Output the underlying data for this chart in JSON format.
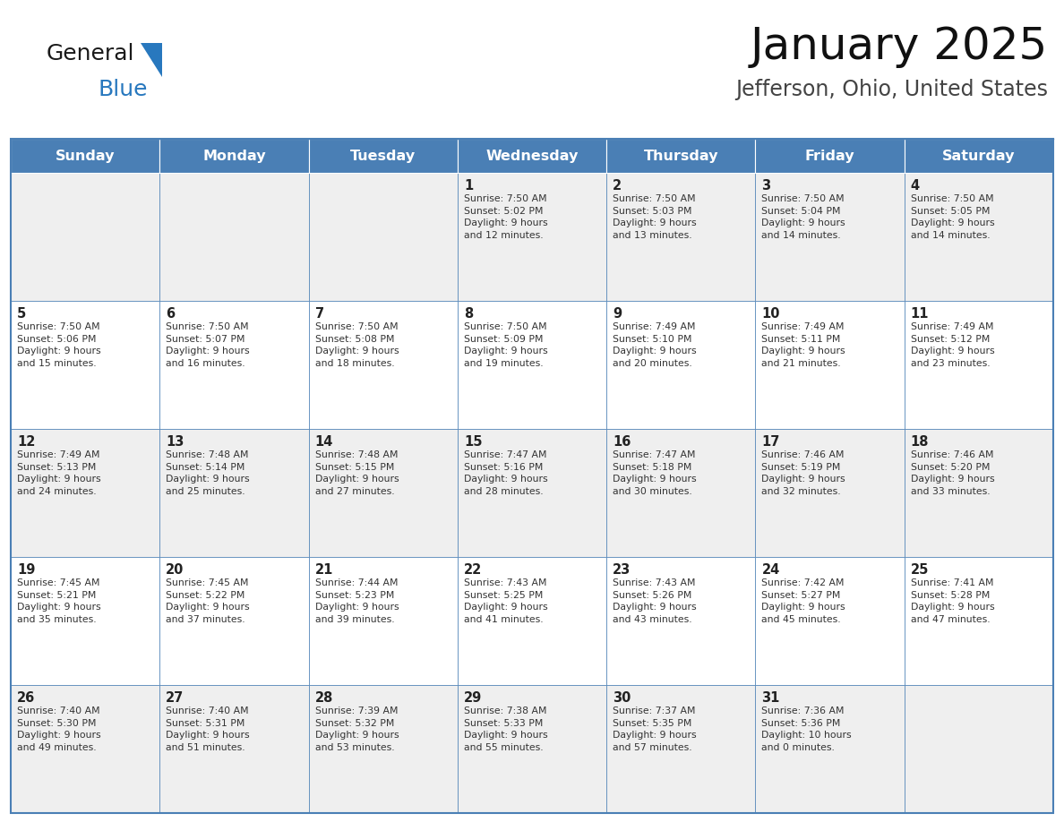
{
  "title": "January 2025",
  "subtitle": "Jefferson, Ohio, United States",
  "header_color": "#4A7FB5",
  "header_text_color": "#FFFFFF",
  "cell_bg_row0": "#EFEFEF",
  "cell_bg_row1": "#FFFFFF",
  "border_color": "#4A7FB5",
  "text_color": "#333333",
  "day_num_color": "#222222",
  "days_of_week": [
    "Sunday",
    "Monday",
    "Tuesday",
    "Wednesday",
    "Thursday",
    "Friday",
    "Saturday"
  ],
  "weeks": [
    [
      {
        "day": "",
        "info": ""
      },
      {
        "day": "",
        "info": ""
      },
      {
        "day": "",
        "info": ""
      },
      {
        "day": "1",
        "info": "Sunrise: 7:50 AM\nSunset: 5:02 PM\nDaylight: 9 hours\nand 12 minutes."
      },
      {
        "day": "2",
        "info": "Sunrise: 7:50 AM\nSunset: 5:03 PM\nDaylight: 9 hours\nand 13 minutes."
      },
      {
        "day": "3",
        "info": "Sunrise: 7:50 AM\nSunset: 5:04 PM\nDaylight: 9 hours\nand 14 minutes."
      },
      {
        "day": "4",
        "info": "Sunrise: 7:50 AM\nSunset: 5:05 PM\nDaylight: 9 hours\nand 14 minutes."
      }
    ],
    [
      {
        "day": "5",
        "info": "Sunrise: 7:50 AM\nSunset: 5:06 PM\nDaylight: 9 hours\nand 15 minutes."
      },
      {
        "day": "6",
        "info": "Sunrise: 7:50 AM\nSunset: 5:07 PM\nDaylight: 9 hours\nand 16 minutes."
      },
      {
        "day": "7",
        "info": "Sunrise: 7:50 AM\nSunset: 5:08 PM\nDaylight: 9 hours\nand 18 minutes."
      },
      {
        "day": "8",
        "info": "Sunrise: 7:50 AM\nSunset: 5:09 PM\nDaylight: 9 hours\nand 19 minutes."
      },
      {
        "day": "9",
        "info": "Sunrise: 7:49 AM\nSunset: 5:10 PM\nDaylight: 9 hours\nand 20 minutes."
      },
      {
        "day": "10",
        "info": "Sunrise: 7:49 AM\nSunset: 5:11 PM\nDaylight: 9 hours\nand 21 minutes."
      },
      {
        "day": "11",
        "info": "Sunrise: 7:49 AM\nSunset: 5:12 PM\nDaylight: 9 hours\nand 23 minutes."
      }
    ],
    [
      {
        "day": "12",
        "info": "Sunrise: 7:49 AM\nSunset: 5:13 PM\nDaylight: 9 hours\nand 24 minutes."
      },
      {
        "day": "13",
        "info": "Sunrise: 7:48 AM\nSunset: 5:14 PM\nDaylight: 9 hours\nand 25 minutes."
      },
      {
        "day": "14",
        "info": "Sunrise: 7:48 AM\nSunset: 5:15 PM\nDaylight: 9 hours\nand 27 minutes."
      },
      {
        "day": "15",
        "info": "Sunrise: 7:47 AM\nSunset: 5:16 PM\nDaylight: 9 hours\nand 28 minutes."
      },
      {
        "day": "16",
        "info": "Sunrise: 7:47 AM\nSunset: 5:18 PM\nDaylight: 9 hours\nand 30 minutes."
      },
      {
        "day": "17",
        "info": "Sunrise: 7:46 AM\nSunset: 5:19 PM\nDaylight: 9 hours\nand 32 minutes."
      },
      {
        "day": "18",
        "info": "Sunrise: 7:46 AM\nSunset: 5:20 PM\nDaylight: 9 hours\nand 33 minutes."
      }
    ],
    [
      {
        "day": "19",
        "info": "Sunrise: 7:45 AM\nSunset: 5:21 PM\nDaylight: 9 hours\nand 35 minutes."
      },
      {
        "day": "20",
        "info": "Sunrise: 7:45 AM\nSunset: 5:22 PM\nDaylight: 9 hours\nand 37 minutes."
      },
      {
        "day": "21",
        "info": "Sunrise: 7:44 AM\nSunset: 5:23 PM\nDaylight: 9 hours\nand 39 minutes."
      },
      {
        "day": "22",
        "info": "Sunrise: 7:43 AM\nSunset: 5:25 PM\nDaylight: 9 hours\nand 41 minutes."
      },
      {
        "day": "23",
        "info": "Sunrise: 7:43 AM\nSunset: 5:26 PM\nDaylight: 9 hours\nand 43 minutes."
      },
      {
        "day": "24",
        "info": "Sunrise: 7:42 AM\nSunset: 5:27 PM\nDaylight: 9 hours\nand 45 minutes."
      },
      {
        "day": "25",
        "info": "Sunrise: 7:41 AM\nSunset: 5:28 PM\nDaylight: 9 hours\nand 47 minutes."
      }
    ],
    [
      {
        "day": "26",
        "info": "Sunrise: 7:40 AM\nSunset: 5:30 PM\nDaylight: 9 hours\nand 49 minutes."
      },
      {
        "day": "27",
        "info": "Sunrise: 7:40 AM\nSunset: 5:31 PM\nDaylight: 9 hours\nand 51 minutes."
      },
      {
        "day": "28",
        "info": "Sunrise: 7:39 AM\nSunset: 5:32 PM\nDaylight: 9 hours\nand 53 minutes."
      },
      {
        "day": "29",
        "info": "Sunrise: 7:38 AM\nSunset: 5:33 PM\nDaylight: 9 hours\nand 55 minutes."
      },
      {
        "day": "30",
        "info": "Sunrise: 7:37 AM\nSunset: 5:35 PM\nDaylight: 9 hours\nand 57 minutes."
      },
      {
        "day": "31",
        "info": "Sunrise: 7:36 AM\nSunset: 5:36 PM\nDaylight: 10 hours\nand 0 minutes."
      },
      {
        "day": "",
        "info": ""
      }
    ]
  ],
  "logo_general_color": "#1a1a1a",
  "logo_blue_color": "#2878BE",
  "logo_triangle_color": "#2878BE",
  "figwidth": 11.88,
  "figheight": 9.18,
  "dpi": 100
}
